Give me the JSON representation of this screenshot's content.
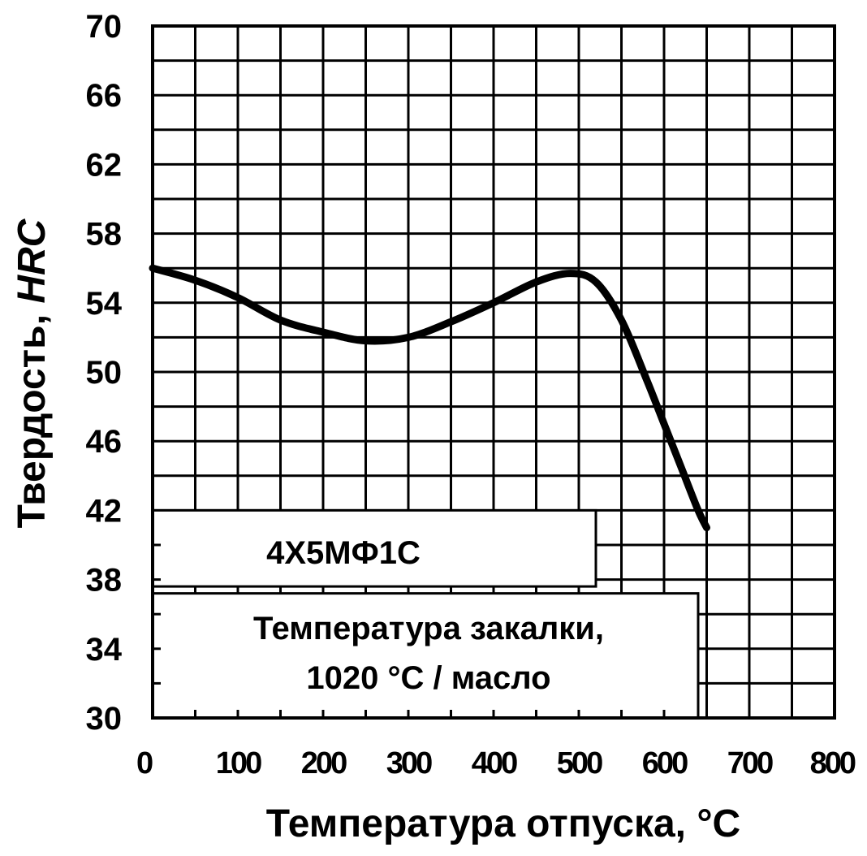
{
  "chart_data": {
    "type": "line",
    "xlabel": "Температура отпуска, °C",
    "ylabel_prefix": "Твердость,",
    "ylabel_unit": "HRC",
    "xlim": [
      0,
      800
    ],
    "ylim": [
      30,
      70
    ],
    "x_ticks": [
      "0",
      "100",
      "200",
      "300",
      "400",
      "500",
      "600",
      "700",
      "800"
    ],
    "y_ticks": [
      "30",
      "34",
      "38",
      "42",
      "46",
      "50",
      "54",
      "58",
      "62",
      "66",
      "70"
    ],
    "grid": true,
    "grid_step_x": 50,
    "grid_step_y": 2,
    "series": [
      {
        "x": [
          0,
          50,
          100,
          150,
          200,
          250,
          300,
          350,
          400,
          450,
          490,
          520,
          550,
          580,
          600,
          620,
          640,
          650
        ],
        "y": [
          56,
          55.3,
          54.3,
          53,
          52.3,
          51.8,
          52,
          52.9,
          54,
          55.2,
          55.7,
          55.2,
          53,
          49.5,
          47,
          44.5,
          42,
          41
        ]
      }
    ],
    "annotations": {
      "steel_grade": "4Х5МФ1С",
      "quench_line1": "Температура закалки,",
      "quench_line2": "1020 °C / масло"
    },
    "line_color": "#000000",
    "grid_color": "#000000"
  }
}
